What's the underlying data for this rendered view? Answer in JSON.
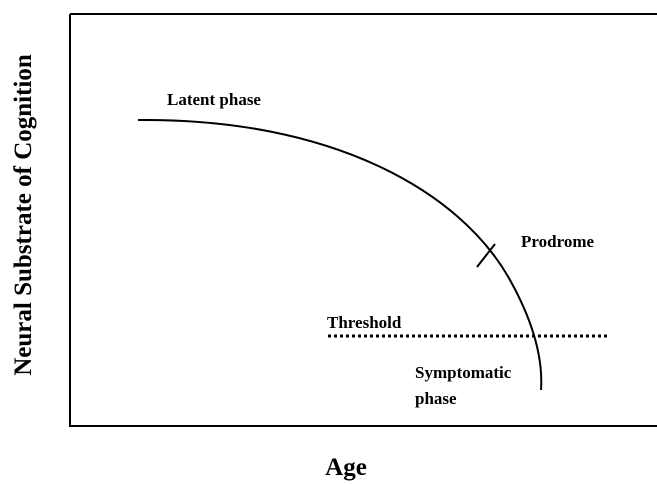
{
  "axes": {
    "x_label": "Age",
    "y_label": "Neural Substrate of Cognition"
  },
  "annotations": {
    "latent": "Latent phase",
    "prodrome": "Prodrome",
    "threshold": "Threshold",
    "symptomatic": [
      "Symptomatic",
      "phase"
    ]
  }
}
